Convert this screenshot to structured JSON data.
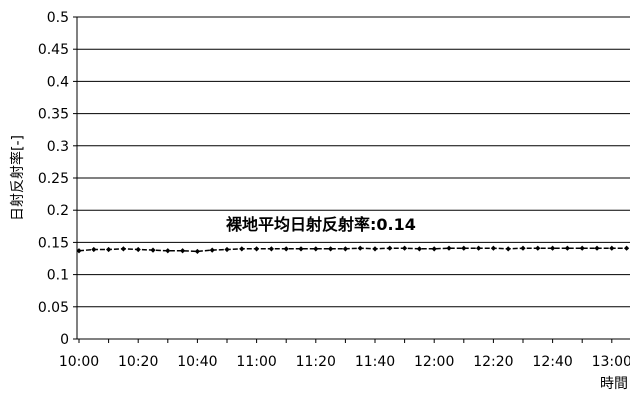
{
  "chart_data": {
    "type": "line",
    "ylabel": "日射反射率[-]",
    "xlabel": "時間",
    "ylim": [
      0,
      0.5
    ],
    "yticks": [
      "0",
      "0.05",
      "0.1",
      "0.15",
      "0.2",
      "0.25",
      "0.3",
      "0.35",
      "0.4",
      "0.45",
      "0.5"
    ],
    "xticks": [
      "10:00",
      "10:20",
      "10:40",
      "11:00",
      "11:20",
      "11:40",
      "12:00",
      "12:20",
      "12:40",
      "13:00"
    ],
    "grid": "horizontal",
    "annotation": "裸地平均日射反射率:0.14",
    "series": [
      {
        "color": "#000000",
        "x": [
          "10:00",
          "10:05",
          "10:10",
          "10:15",
          "10:20",
          "10:25",
          "10:30",
          "10:35",
          "10:40",
          "10:45",
          "10:50",
          "10:55",
          "11:00",
          "11:05",
          "11:10",
          "11:15",
          "11:20",
          "11:25",
          "11:30",
          "11:35",
          "11:40",
          "11:45",
          "11:50",
          "11:55",
          "12:00",
          "12:05",
          "12:10",
          "12:15",
          "12:20",
          "12:25",
          "12:30",
          "12:35",
          "12:40",
          "12:45",
          "12:50",
          "12:55",
          "13:00",
          "13:05"
        ],
        "values": [
          0.137,
          0.139,
          0.139,
          0.14,
          0.139,
          0.138,
          0.137,
          0.137,
          0.136,
          0.138,
          0.139,
          0.14,
          0.14,
          0.14,
          0.14,
          0.14,
          0.14,
          0.14,
          0.14,
          0.141,
          0.14,
          0.141,
          0.141,
          0.14,
          0.14,
          0.141,
          0.141,
          0.141,
          0.141,
          0.14,
          0.141,
          0.141,
          0.141,
          0.141,
          0.141,
          0.141,
          0.141,
          0.141
        ]
      }
    ]
  }
}
